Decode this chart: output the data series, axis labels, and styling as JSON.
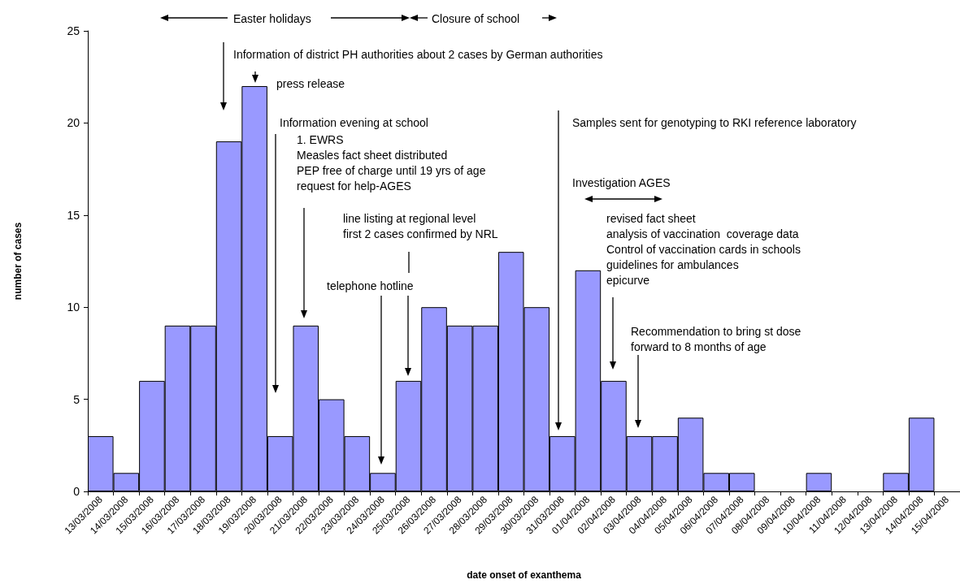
{
  "chart_data": {
    "type": "bar",
    "categories": [
      "13/03/2008",
      "14/03/2008",
      "15/03/2008",
      "16/03/2008",
      "17/03/2008",
      "18/03/2008",
      "19/03/2008",
      "20/03/2008",
      "21/03/2008",
      "22/03/2008",
      "23/03/2008",
      "24/03/2008",
      "25/03/2008",
      "26/03/2008",
      "27/03/2008",
      "28/03/2008",
      "29/03/2008",
      "30/03/2008",
      "31/03/2008",
      "01/04/2008",
      "02/04/2008",
      "03/04/2008",
      "04/04/2008",
      "05/04/2008",
      "06/04/2008",
      "07/04/2008",
      "08/04/2008",
      "09/04/2008",
      "10/04/2008",
      "11/04/2008",
      "12/04/2008",
      "13/04/2008",
      "14/04/2008",
      "15/04/2008"
    ],
    "values": [
      3,
      1,
      6,
      9,
      9,
      19,
      22,
      3,
      9,
      5,
      3,
      1,
      6,
      10,
      9,
      9,
      13,
      10,
      3,
      12,
      6,
      3,
      3,
      4,
      1,
      1,
      0,
      0,
      1,
      0,
      0,
      1,
      4,
      0
    ],
    "color": "#9999ff",
    "xlabel": "date onset of exanthema",
    "ylabel": "number of cases",
    "ylim": [
      0,
      25
    ],
    "yticks": [
      0,
      5,
      10,
      15,
      20,
      25
    ],
    "grid": false,
    "annotations": [
      "Easter holidays",
      "Closure of school",
      "Information of district PH authorities about 2 cases by German authorities",
      "press release",
      "Information evening at school",
      "1. EWRS\nMeasles fact sheet distributed\nPEP free of charge until 19 yrs of age\nrequest for help-AGES",
      "line listing at regional level\nfirst 2 cases confirmed by NRL",
      "telephone hotline",
      "Samples sent for genotyping to RKI reference laboratory",
      "Investigation AGES",
      "revised fact sheet\nanalysis of vaccination  coverage data\nControl of vaccination cards in schools\nguidelines for ambulances\nepicurve",
      "Recommendation to bring st dose\nforward to 8 months of age"
    ]
  }
}
